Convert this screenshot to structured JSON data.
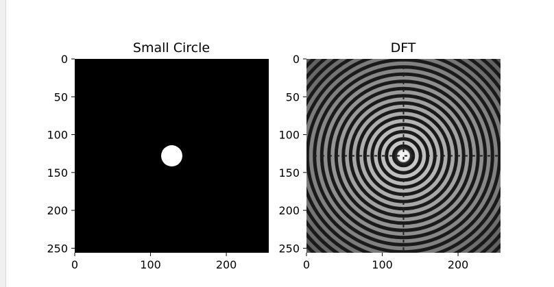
{
  "chart_data": [
    {
      "type": "heatmap",
      "title": "Small Circle",
      "xlabel": "",
      "ylabel": "",
      "image_size": [
        256,
        256
      ],
      "xlim": [
        0,
        256
      ],
      "ylim": [
        256,
        0
      ],
      "xticks": [
        0,
        100,
        200
      ],
      "yticks": [
        0,
        50,
        100,
        150,
        200,
        250
      ],
      "xtick_labels": [
        "0",
        "100",
        "200"
      ],
      "ytick_labels": [
        "0",
        "50",
        "100",
        "150",
        "200",
        "250"
      ],
      "content": {
        "shape": "filled circle",
        "center": [
          128,
          128
        ],
        "radius": 14,
        "foreground": "#ffffff",
        "background": "#000000"
      },
      "colormap": "gray"
    },
    {
      "type": "heatmap",
      "title": "DFT",
      "xlabel": "",
      "ylabel": "",
      "image_size": [
        256,
        256
      ],
      "xlim": [
        0,
        256
      ],
      "ylim": [
        256,
        0
      ],
      "xticks": [
        0,
        100,
        200
      ],
      "yticks": [
        0,
        50,
        100,
        150,
        200,
        250
      ],
      "xtick_labels": [
        "0",
        "100",
        "200"
      ],
      "ytick_labels": [
        "0",
        "50",
        "100",
        "150",
        "200",
        "250"
      ],
      "content": {
        "shape": "concentric ring pattern (log magnitude spectrum)",
        "center": [
          128,
          128
        ],
        "colormap": "gray"
      },
      "colormap": "gray"
    }
  ]
}
